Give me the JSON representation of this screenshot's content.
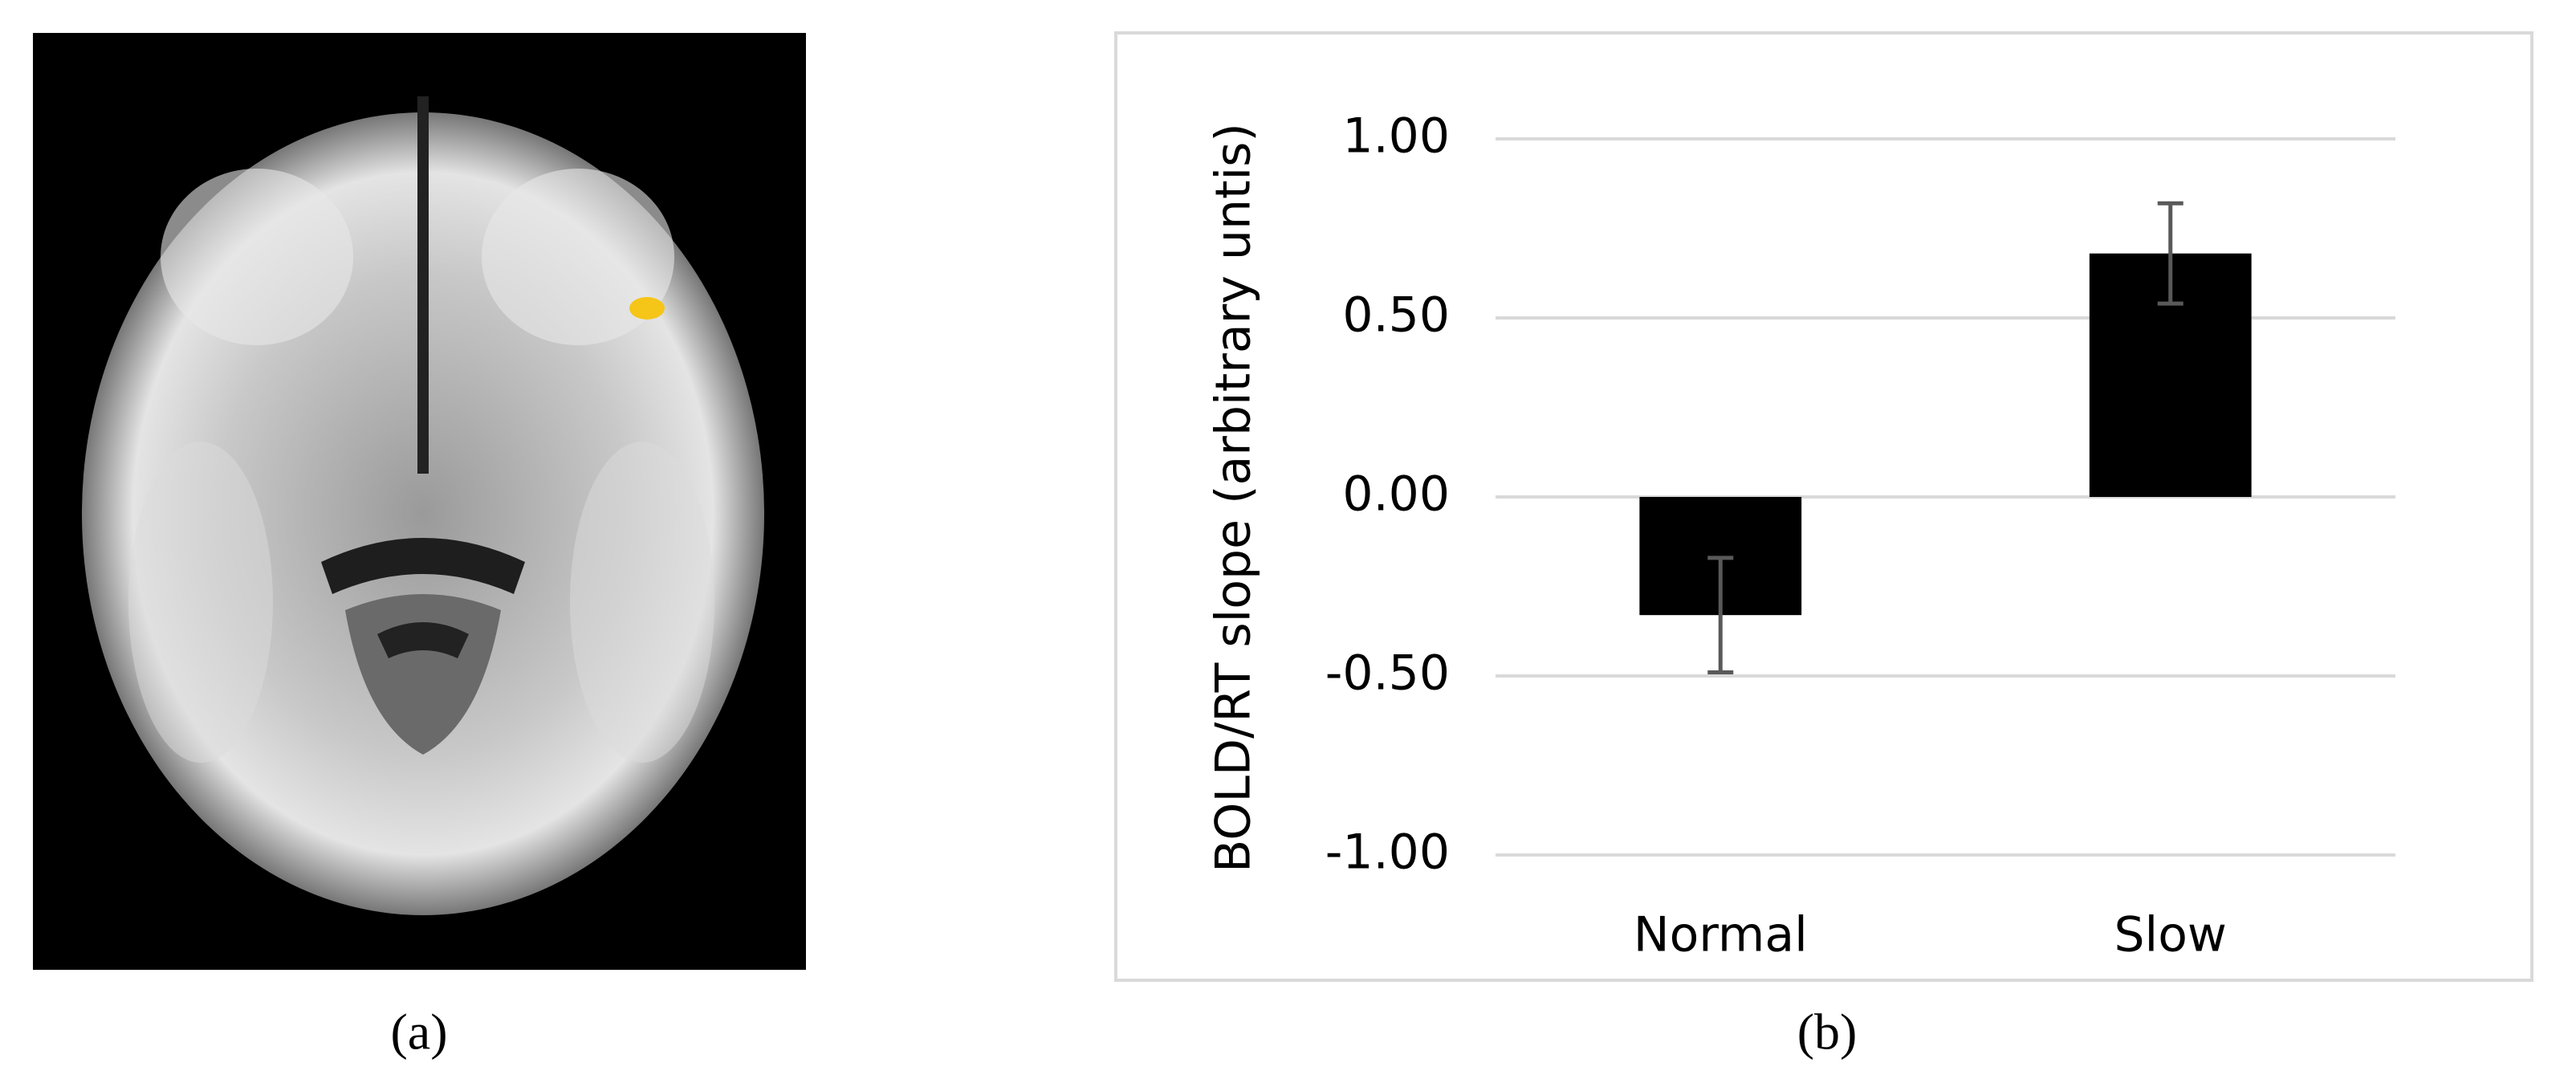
{
  "panels": {
    "left_label": "(a)",
    "right_label": "(b)"
  },
  "chart_data": {
    "type": "bar",
    "y_label": "BOLD/RT slope (arbitrary untis)",
    "categories": [
      "Normal",
      "Slow"
    ],
    "values": [
      -0.33,
      0.68
    ],
    "errors": [
      0.16,
      0.14
    ],
    "color": "#000000",
    "error_color": "#595959",
    "ylim": [
      -1,
      1
    ],
    "yticks": [
      {
        "value": -1,
        "label": "-1.00"
      },
      {
        "value": -0.5,
        "label": "-0.50"
      },
      {
        "value": 0,
        "label": "0.00"
      },
      {
        "value": 0.5,
        "label": "0.50"
      },
      {
        "value": 1,
        "label": "1.00"
      }
    ],
    "grid": true
  }
}
